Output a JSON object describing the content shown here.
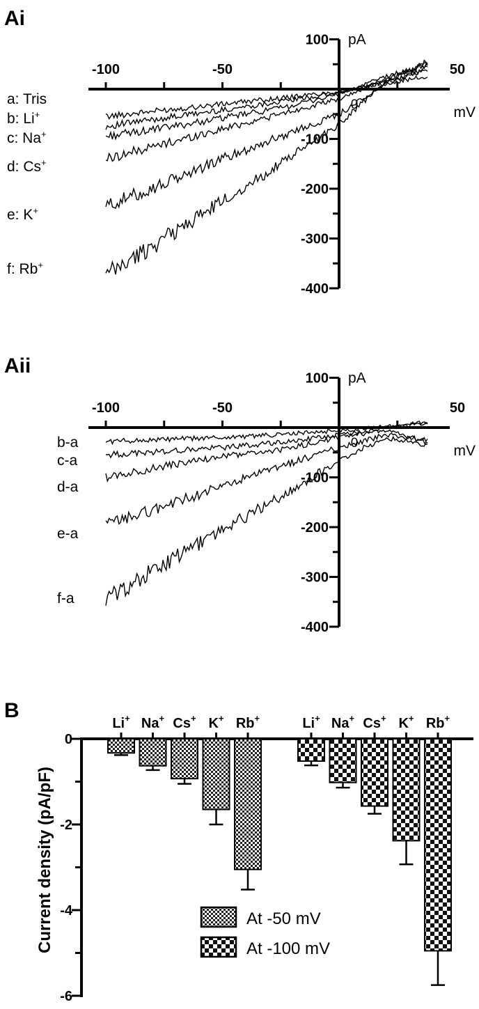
{
  "chart_data": [
    {
      "panel": "Ai",
      "type": "line",
      "xlabel": "mV",
      "ylabel": "pA",
      "xlim": [
        -100,
        40
      ],
      "ylim": [
        -400,
        100
      ],
      "x_ticks": [
        "-100",
        "-50",
        "50"
      ],
      "x_zero_label": "0",
      "y_ticks": [
        "100",
        "-100",
        "-200",
        "-300",
        "-400"
      ],
      "series": [
        {
          "name": "a: Tris",
          "label_main": "a: Tris",
          "label_sup": "",
          "x": [
            -100,
            -75,
            -50,
            -25,
            0,
            20,
            38
          ],
          "y": [
            -55,
            -42,
            -30,
            -18,
            -5,
            12,
            25
          ]
        },
        {
          "name": "b: Li+",
          "label_main": "b: Li",
          "label_sup": "+",
          "x": [
            -100,
            -75,
            -50,
            -25,
            0,
            20,
            38
          ],
          "y": [
            -75,
            -58,
            -42,
            -25,
            -8,
            15,
            38
          ]
        },
        {
          "name": "c: Na+",
          "label_main": "c: Na",
          "label_sup": "+",
          "x": [
            -100,
            -75,
            -50,
            -25,
            0,
            20,
            38
          ],
          "y": [
            -95,
            -78,
            -58,
            -38,
            -10,
            25,
            48
          ]
        },
        {
          "name": "d: Cs+",
          "label_main": "d: Cs",
          "label_sup": "+",
          "x": [
            -100,
            -75,
            -50,
            -25,
            0,
            20,
            38
          ],
          "y": [
            -140,
            -110,
            -80,
            -50,
            -20,
            20,
            50
          ]
        },
        {
          "name": "e: K+",
          "label_main": "e: K",
          "label_sup": "+",
          "x": [
            -100,
            -75,
            -50,
            -25,
            0,
            20,
            38
          ],
          "y": [
            -235,
            -190,
            -140,
            -95,
            -50,
            10,
            45
          ]
        },
        {
          "name": "f: Rb+",
          "label_main": "f: Rb",
          "label_sup": "+",
          "x": [
            -100,
            -75,
            -50,
            -25,
            0,
            20,
            38
          ],
          "y": [
            -375,
            -300,
            -225,
            -150,
            -70,
            15,
            55
          ]
        }
      ]
    },
    {
      "panel": "Aii",
      "type": "line",
      "xlabel": "mV",
      "ylabel": "pA",
      "xlim": [
        -100,
        40
      ],
      "ylim": [
        -400,
        100
      ],
      "x_ticks": [
        "-100",
        "-50",
        "50"
      ],
      "x_zero_label": "0",
      "y_ticks": [
        "100",
        "-100",
        "-200",
        "-300",
        "-400"
      ],
      "series": [
        {
          "name": "b-a",
          "label_main": "b-a",
          "label_sup": "",
          "x": [
            -100,
            -75,
            -50,
            -25,
            0,
            20,
            38
          ],
          "y": [
            -28,
            -24,
            -20,
            -14,
            -6,
            2,
            8
          ]
        },
        {
          "name": "c-a",
          "label_main": "c-a",
          "label_sup": "",
          "x": [
            -100,
            -75,
            -50,
            -25,
            0,
            20,
            38
          ],
          "y": [
            -55,
            -48,
            -40,
            -30,
            -15,
            0,
            12
          ]
        },
        {
          "name": "d-a",
          "label_main": "d-a",
          "label_sup": "",
          "x": [
            -100,
            -75,
            -50,
            -25,
            0,
            20,
            38
          ],
          "y": [
            -100,
            -78,
            -58,
            -45,
            -20,
            -5,
            -30
          ]
        },
        {
          "name": "e-a",
          "label_main": "e-a",
          "label_sup": "",
          "x": [
            -100,
            -75,
            -50,
            -25,
            0,
            20,
            38
          ],
          "y": [
            -195,
            -158,
            -118,
            -78,
            -40,
            -15,
            -25
          ]
        },
        {
          "name": "f-a",
          "label_main": "f-a",
          "label_sup": "",
          "x": [
            -100,
            -75,
            -50,
            -25,
            0,
            20,
            38
          ],
          "y": [
            -345,
            -275,
            -205,
            -140,
            -65,
            -20,
            -35
          ]
        }
      ]
    },
    {
      "panel": "B",
      "type": "bar",
      "ylabel": "Current density (pA/pF)",
      "ylim": [
        -6,
        0
      ],
      "y_ticks": [
        "0",
        "-2",
        "-4",
        "-6"
      ],
      "categories": [
        {
          "main": "Li",
          "sup": "+"
        },
        {
          "main": "Na",
          "sup": "+"
        },
        {
          "main": "Cs",
          "sup": "+"
        },
        {
          "main": "K",
          "sup": "+"
        },
        {
          "main": "Rb",
          "sup": "+"
        }
      ],
      "series": [
        {
          "name": "At -50 mV",
          "pattern": "fine-check",
          "values": [
            -0.33,
            -0.63,
            -0.93,
            -1.65,
            -3.05
          ],
          "errors": [
            0.05,
            0.1,
            0.12,
            0.35,
            0.47
          ]
        },
        {
          "name": "At -100 mV",
          "pattern": "coarse-check",
          "values": [
            -0.52,
            -1.02,
            -1.57,
            -2.38,
            -4.95
          ],
          "errors": [
            0.1,
            0.12,
            0.18,
            0.55,
            0.8
          ]
        }
      ],
      "legend": "bottom-center"
    }
  ]
}
